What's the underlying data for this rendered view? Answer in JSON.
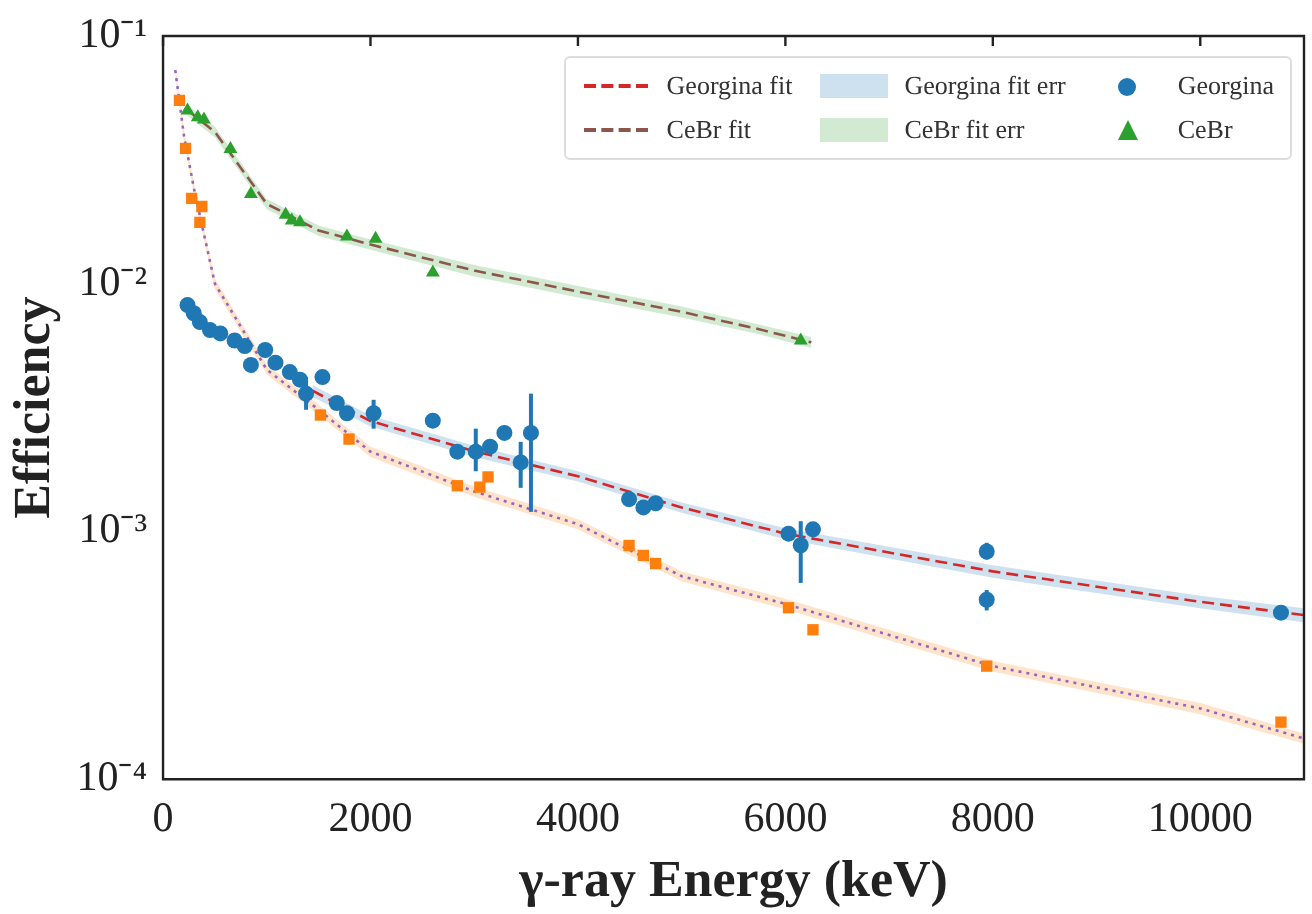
{
  "chart_data": {
    "type": "scatter",
    "xlabel": "γ-ray Energy (keV)",
    "ylabel": "Efficiency",
    "xlim": [
      0,
      11000
    ],
    "xticks": [
      0,
      2000,
      4000,
      6000,
      8000,
      10000
    ],
    "ylim": [
      0.0001,
      0.1
    ],
    "yticks": [
      {
        "value": 0.0001,
        "label": "10⁻⁴"
      },
      {
        "value": 0.001,
        "label": "10⁻³"
      },
      {
        "value": 0.01,
        "label": "10⁻²"
      },
      {
        "value": 0.1,
        "label": "10⁻¹"
      }
    ],
    "log": "y",
    "grid": false,
    "legend": "top right",
    "annotations": [
      "Georgina fit err",
      "CeBr fit err"
    ],
    "series": [
      {
        "name": "Georgina fit",
        "type": "line",
        "line_style": "dashed",
        "color": "#d62728",
        "x": [
          1440,
          2000,
          3000,
          4000,
          5000,
          6000,
          8000,
          10000,
          11000
        ],
        "values": [
          0.0037,
          0.00279,
          0.00211,
          0.00167,
          0.00125,
          0.00098,
          0.00069,
          0.00052,
          0.00046
        ],
        "lower": [
          0.0035,
          0.00265,
          0.002,
          0.00159,
          0.00119,
          0.00093,
          0.00065,
          0.00049,
          0.00043
        ],
        "upper": [
          0.0039,
          0.00293,
          0.00222,
          0.00175,
          0.00131,
          0.00103,
          0.00073,
          0.00055,
          0.00049
        ]
      },
      {
        "type": "line",
        "line_style": "dotted",
        "color": "#9467bd",
        "x": [
          118,
          200,
          300,
          500,
          1000,
          1500,
          2000,
          3000,
          4000,
          5000,
          6000,
          8000,
          10000,
          11000
        ],
        "values": [
          0.0728,
          0.04,
          0.024,
          0.01,
          0.0045,
          0.0031,
          0.0021,
          0.00145,
          0.00107,
          0.00066,
          0.00051,
          0.000286,
          0.000193,
          0.000146
        ],
        "lower": [
          0.069,
          0.038,
          0.0228,
          0.0095,
          0.0043,
          0.00295,
          0.002,
          0.00138,
          0.00102,
          0.00063,
          0.000485,
          0.000272,
          0.000183,
          0.000139
        ],
        "upper": [
          0.0766,
          0.042,
          0.0252,
          0.0105,
          0.0047,
          0.00325,
          0.0022,
          0.00152,
          0.00112,
          0.00069,
          0.000535,
          0.0003,
          0.000203,
          0.000153
        ]
      },
      {
        "name": "CeBr fit",
        "type": "line",
        "line_style": "dashed",
        "color": "#8c564b",
        "x": [
          240,
          500,
          1000,
          1500,
          2000,
          3000,
          4000,
          5000,
          5714,
          6250
        ],
        "values": [
          0.05,
          0.041,
          0.021,
          0.0164,
          0.0144,
          0.0113,
          0.0093,
          0.0077,
          0.0066,
          0.0058
        ],
        "lower": [
          0.0475,
          0.039,
          0.02,
          0.0156,
          0.0137,
          0.0107,
          0.0088,
          0.0073,
          0.0063,
          0.0055
        ],
        "upper": [
          0.0525,
          0.043,
          0.022,
          0.0172,
          0.0151,
          0.0119,
          0.0098,
          0.0081,
          0.0069,
          0.0061
        ]
      },
      {
        "name": "Georgina",
        "type": "scatter",
        "marker": "circle",
        "color": "#1f77b4",
        "x": [
          236,
          296,
          355,
          453,
          552,
          690,
          788,
          847,
          985,
          1084,
          1222,
          1320,
          1379,
          1537,
          1675,
          1773,
          2030,
          2601,
          2837,
          3015,
          3153,
          3291,
          3448,
          3547,
          4493,
          4631,
          4749,
          6030,
          6148,
          6266,
          7941,
          7941,
          10778
        ],
        "values": [
          0.0082,
          0.0076,
          0.007,
          0.0065,
          0.0063,
          0.0059,
          0.0056,
          0.0047,
          0.0054,
          0.0048,
          0.0044,
          0.0041,
          0.0036,
          0.0042,
          0.0033,
          0.003,
          0.003,
          0.0028,
          0.0021,
          0.0021,
          0.0022,
          0.0025,
          0.0019,
          0.0025,
          0.00135,
          0.00125,
          0.0013,
          0.00098,
          0.00088,
          0.00102,
          0.00083,
          0.00053,
          0.00047
        ],
        "errors": [
          null,
          null,
          null,
          null,
          null,
          null,
          null,
          null,
          null,
          null,
          null,
          null,
          [
            0.0031,
            0.0042
          ],
          null,
          null,
          null,
          [
            0.0026,
            0.0034
          ],
          null,
          null,
          [
            0.00175,
            0.0026
          ],
          null,
          null,
          [
            0.0015,
            0.0023
          ],
          [
            0.0012,
            0.0036
          ],
          null,
          null,
          null,
          null,
          [
            0.00062,
            0.0011
          ],
          null,
          [
            0.00077,
            0.0009
          ],
          [
            0.00048,
            0.00058
          ],
          null
        ]
      },
      {
        "type": "scatter",
        "marker": "square",
        "color": "#ff7f0e",
        "x": [
          158,
          217,
          276,
          374,
          355,
          1517,
          1793,
          2837,
          3054,
          3133,
          4493,
          4631,
          4749,
          6030,
          6266,
          7941,
          10778
        ],
        "values": [
          0.055,
          0.0352,
          0.0221,
          0.0205,
          0.0177,
          0.00295,
          0.00236,
          0.00153,
          0.00151,
          0.00166,
          0.000878,
          0.0008,
          0.000742,
          0.000492,
          0.000401,
          0.000286,
          0.00017
        ]
      },
      {
        "name": "CeBr",
        "type": "scatter",
        "marker": "triangle",
        "color": "#2ca02c",
        "x": [
          236,
          335,
          394,
          650,
          847,
          1182,
          1241,
          1320,
          1773,
          2049,
          2601,
          6148
        ],
        "values": [
          0.05,
          0.047,
          0.046,
          0.035,
          0.023,
          0.019,
          0.018,
          0.0177,
          0.0155,
          0.0152,
          0.0111,
          0.0059
        ]
      }
    ]
  }
}
